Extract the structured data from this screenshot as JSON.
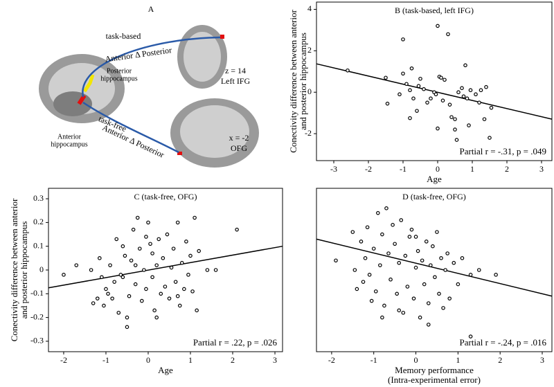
{
  "panel_a": {
    "letter": "A",
    "task_based": "task-based",
    "arrow_top": "Anterior Δ Posterior",
    "axial_coord": "z = 14",
    "axial_region": "Left IFG",
    "posterior_1": "Posterior",
    "posterior_2": "hippocampus",
    "anterior_1": "Anterior",
    "anterior_2": "hippocampus",
    "task_free": "task-free",
    "arrow_bottom": "Anterior Δ Posterior",
    "sagittal_coord": "x = -2",
    "sagittal_region": "OFG"
  },
  "chart_data": [
    {
      "type": "scatter",
      "title": "B (task-based, left IFG)",
      "x_label": [
        "Age"
      ],
      "y_label": [
        "Conectivity difference between anterior",
        "and posterior hippocampus"
      ],
      "annotation": "Partial r = -.31, p = .049",
      "color": "#000000",
      "xlim": [
        -3.5,
        3.3
      ],
      "ylim": [
        -3.3,
        4.35
      ],
      "xticks": [
        -3,
        -2,
        -1,
        0,
        1,
        2,
        3
      ],
      "yticks": [
        -2,
        0,
        2,
        4
      ],
      "x": [
        -2.6,
        -1.5,
        -1.45,
        -1.1,
        -1.0,
        -1.0,
        -0.9,
        -0.8,
        -0.75,
        -0.7,
        -0.6,
        -0.55,
        -0.5,
        -0.4,
        -0.3,
        -0.2,
        -0.1,
        -0.05,
        0.0,
        0.05,
        0.1,
        0.15,
        0.2,
        0.3,
        0.35,
        0.5,
        0.5,
        0.55,
        0.6,
        0.7,
        0.75,
        0.8,
        0.85,
        0.9,
        0.95,
        1.1,
        1.2,
        1.25,
        1.35,
        1.4,
        1.55,
        1.5,
        0.4,
        0.0,
        -0.8
      ],
      "values": [
        1.05,
        0.7,
        -0.55,
        -0.1,
        2.55,
        0.9,
        0.4,
        0.1,
        1.15,
        -0.3,
        -0.9,
        0.3,
        0.65,
        0.15,
        -0.5,
        -0.3,
        0.0,
        -0.1,
        3.2,
        0.75,
        0.7,
        -0.4,
        0.6,
        2.8,
        -0.6,
        -1.3,
        -1.8,
        -2.3,
        0.0,
        0.2,
        -0.2,
        1.3,
        -0.3,
        -1.6,
        0.1,
        -0.1,
        -0.5,
        0.1,
        -1.3,
        0.25,
        -0.75,
        -2.2,
        -1.2,
        -1.75,
        -1.25
      ],
      "fit_line": {
        "x": [
          -3.5,
          3.3
        ],
        "y": [
          1.37,
          -1.3
        ]
      }
    },
    {
      "type": "scatter",
      "title": "C (task-free, OFG)",
      "x_label": [
        "Age"
      ],
      "y_label": [
        "Conectivity difference between anterior",
        "and posterior hippocampus"
      ],
      "annotation": "Partial r = .22, p = .026",
      "color": "#000000",
      "xlim": [
        -2.36,
        3.18
      ],
      "ylim": [
        -0.344,
        0.344
      ],
      "xticks": [
        -2,
        -1,
        0,
        1,
        2,
        3
      ],
      "yticks": [
        -0.3,
        -0.2,
        -0.1,
        0,
        0.1,
        0.2,
        0.3
      ],
      "x": [
        -2.0,
        -1.7,
        -1.35,
        -1.3,
        -1.2,
        -1.15,
        -1.1,
        -1.05,
        -1.0,
        -0.95,
        -0.9,
        -0.85,
        -0.8,
        -0.75,
        -0.7,
        -0.65,
        -0.6,
        -0.55,
        -0.5,
        -0.5,
        -0.45,
        -0.4,
        -0.35,
        -0.3,
        -0.25,
        -0.2,
        -0.15,
        -0.1,
        -0.05,
        -0.05,
        0.0,
        0.05,
        0.1,
        0.1,
        0.15,
        0.2,
        0.25,
        0.3,
        0.35,
        0.4,
        0.45,
        0.5,
        0.55,
        0.6,
        0.65,
        0.7,
        0.75,
        0.8,
        0.85,
        0.9,
        0.95,
        1.0,
        1.05,
        1.1,
        1.15,
        1.2,
        1.4,
        1.6,
        2.1,
        -0.6,
        -0.3,
        0.2,
        0.7
      ],
      "values": [
        -0.02,
        0.02,
        0.0,
        -0.14,
        -0.12,
        0.05,
        -0.03,
        -0.15,
        -0.08,
        -0.1,
        0.02,
        -0.12,
        -0.05,
        0.13,
        -0.18,
        -0.02,
        0.1,
        0.06,
        -0.24,
        -0.2,
        -0.11,
        0.04,
        0.17,
        -0.06,
        0.22,
        0.09,
        -0.13,
        0.0,
        0.14,
        -0.08,
        0.2,
        0.11,
        -0.03,
        0.07,
        -0.17,
        0.02,
        0.13,
        -0.1,
        0.05,
        -0.07,
        0.15,
        -0.12,
        0.01,
        0.09,
        -0.05,
        0.2,
        -0.15,
        0.03,
        -0.08,
        0.12,
        -0.02,
        0.06,
        -0.09,
        0.22,
        -0.17,
        0.08,
        0.0,
        0.0,
        0.17,
        -0.03,
        0.02,
        -0.2,
        -0.11
      ],
      "fit_line": {
        "x": [
          -2.36,
          3.18
        ],
        "y": [
          -0.075,
          0.1
        ]
      }
    },
    {
      "type": "scatter",
      "title": "D (task-free, OFG)",
      "x_label": [
        "Memory performance",
        "(Intra-experimental error)"
      ],
      "annotation": "Partial r = -.24, p = .016",
      "color": "#000000",
      "xlim": [
        -2.36,
        3.23
      ],
      "ylim": [
        -0.344,
        0.344
      ],
      "xticks": [
        -2,
        -1,
        0,
        1,
        2,
        3
      ],
      "x": [
        -1.9,
        -1.5,
        -1.45,
        -1.4,
        -1.3,
        -1.25,
        -1.2,
        -1.15,
        -1.1,
        -1.05,
        -1.0,
        -0.95,
        -0.9,
        -0.85,
        -0.8,
        -0.75,
        -0.7,
        -0.65,
        -0.6,
        -0.55,
        -0.5,
        -0.45,
        -0.4,
        -0.35,
        -0.3,
        -0.25,
        -0.2,
        -0.15,
        -0.1,
        -0.05,
        0.0,
        0.05,
        0.1,
        0.15,
        0.2,
        0.25,
        0.3,
        0.35,
        0.4,
        0.45,
        0.5,
        0.55,
        0.6,
        0.65,
        0.7,
        0.75,
        0.8,
        0.9,
        1.0,
        1.1,
        1.3,
        1.5,
        1.9,
        -0.8,
        -0.4,
        0.0,
        0.3,
        1.3
      ],
      "values": [
        0.04,
        0.16,
        0.0,
        -0.08,
        0.12,
        -0.05,
        0.05,
        0.18,
        -0.02,
        -0.13,
        0.09,
        -0.09,
        0.24,
        0.02,
        0.15,
        -0.15,
        0.26,
        0.07,
        -0.04,
        0.19,
        0.11,
        -0.1,
        0.03,
        0.21,
        -0.18,
        0.06,
        -0.07,
        0.14,
        0.17,
        -0.12,
        0.01,
        0.08,
        -0.2,
        0.04,
        -0.06,
        0.12,
        -0.14,
        0.02,
        0.1,
        -0.03,
        0.16,
        -0.1,
        0.05,
        -0.16,
        0.0,
        0.07,
        -0.12,
        0.03,
        -0.06,
        0.05,
        -0.02,
        0.0,
        -0.02,
        -0.2,
        -0.17,
        0.14,
        -0.23,
        -0.28
      ],
      "fit_line": {
        "x": [
          -2.36,
          3.23
        ],
        "y": [
          0.13,
          -0.11
        ]
      }
    }
  ]
}
